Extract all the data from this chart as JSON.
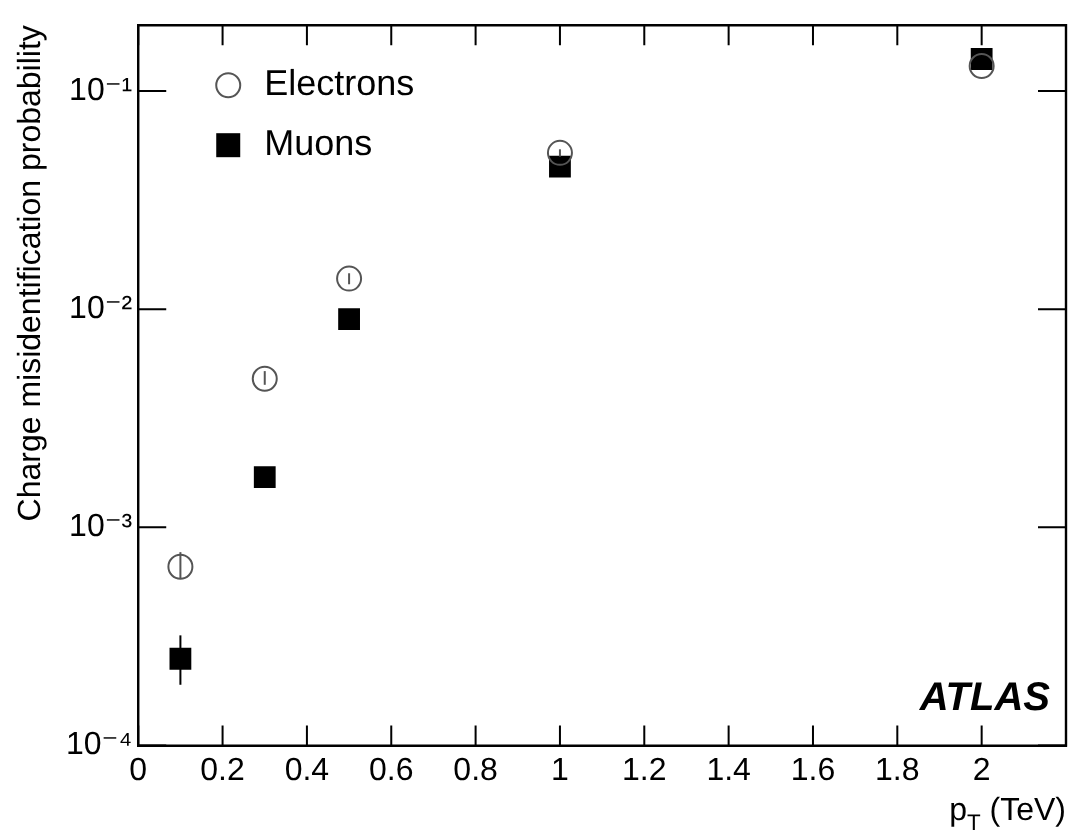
{
  "chart_data": {
    "type": "scatter",
    "xlabel": "p$_{T}$ (TeV)",
    "ylabel": "Charge misidentification probability",
    "log": "y",
    "xlim": [
      0,
      2.2
    ],
    "xticks": [
      0,
      0.2,
      0.4,
      0.6,
      0.8,
      1,
      1.2,
      1.4,
      1.6,
      1.8,
      2
    ],
    "ylim": [
      0.0001,
      0.2
    ],
    "yticks": [
      {
        "value": 0.0001,
        "label": "10⁻⁴"
      },
      {
        "value": 0.001,
        "label": "10⁻³"
      },
      {
        "value": 0.01,
        "label": "10⁻²"
      },
      {
        "value": 0.1,
        "label": "10⁻¹"
      }
    ],
    "grid": false,
    "legend": "top left",
    "series": [
      {
        "name": "Electrons",
        "color": "#555555",
        "marker": "circle",
        "x": [
          0.1,
          0.3,
          0.5,
          1,
          2
        ],
        "values": [
          0.00066,
          0.0048,
          0.0138,
          0.052,
          0.13
        ],
        "errors": [
          [
            0.00058,
            0.00077
          ],
          [
            0.0045,
            0.0052
          ],
          [
            0.013,
            0.0146
          ],
          [
            0.05,
            0.054
          ],
          null
        ]
      },
      {
        "name": "Muons",
        "color": "#000000",
        "marker": "square",
        "x": [
          0.1,
          0.3,
          0.5,
          1,
          2
        ],
        "values": [
          0.00025,
          0.0017,
          0.009,
          0.045,
          0.14
        ],
        "errors": [
          [
            0.00019,
            0.00032
          ],
          null,
          null,
          null,
          null
        ]
      }
    ],
    "annotations": [
      "ATLAS"
    ]
  }
}
